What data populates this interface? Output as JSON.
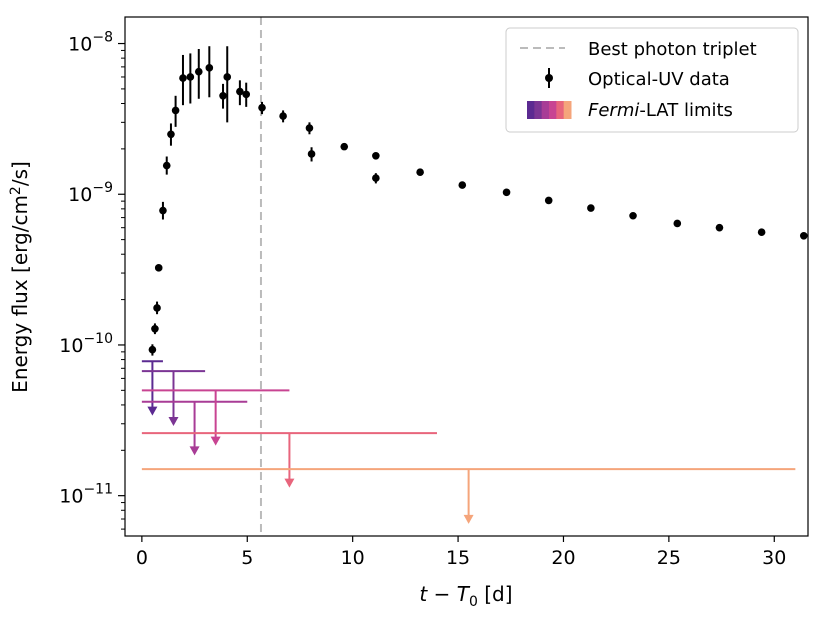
{
  "chart_data": {
    "type": "scatter",
    "title": "",
    "xlabel": {
      "italic_var": "t",
      "minus": " − ",
      "base": "T",
      "sub": "0",
      "unit": " [d]"
    },
    "ylabel": {
      "prefix": "Energy flux [erg/cm",
      "sup": "2",
      "suffix": "/s]"
    },
    "y_scale": "log",
    "xlim": [
      -0.8,
      31.6
    ],
    "ylim": [
      5.4e-12,
      1.5e-08
    ],
    "x_ticks": [
      0,
      5,
      10,
      15,
      20,
      25,
      30
    ],
    "x_tick_labels": [
      "0",
      "5",
      "10",
      "15",
      "20",
      "25",
      "30"
    ],
    "y_ticks": [
      {
        "value": 1e-11,
        "base": "10",
        "exp": "−11"
      },
      {
        "value": 1e-10,
        "base": "10",
        "exp": "−10"
      },
      {
        "value": 1e-09,
        "base": "10",
        "exp": "−9"
      },
      {
        "value": 1e-08,
        "base": "10",
        "exp": "−8"
      }
    ],
    "grid": false,
    "legend": {
      "position": "top-right",
      "entries": {
        "triplet": "Best photon triplet",
        "optical": "Optical-UV data",
        "fermi_italic": "Fermi",
        "fermi_rest": "-LAT limits"
      }
    },
    "vertical_line": {
      "x": 5.65,
      "color": "#bbbbbb",
      "style": "dashed",
      "legend": "Best photon triplet"
    },
    "optical_uv_data": {
      "name": "Optical-UV data",
      "color": "#000000",
      "points": [
        {
          "x": 0.5,
          "y": 9.3e-11,
          "yerr_low": 8.5e-11,
          "yerr_high": 1.01e-10
        },
        {
          "x": 0.62,
          "y": 1.28e-10,
          "yerr_low": 1.18e-10,
          "yerr_high": 1.39e-10
        },
        {
          "x": 0.72,
          "y": 1.76e-10,
          "yerr_low": 1.6e-10,
          "yerr_high": 1.94e-10
        },
        {
          "x": 0.8,
          "y": 3.25e-10,
          "yerr_low": 3.15e-10,
          "yerr_high": 3.35e-10
        },
        {
          "x": 1.0,
          "y": 7.8e-10,
          "yerr_low": 6.8e-10,
          "yerr_high": 8.9e-10
        },
        {
          "x": 1.18,
          "y": 1.55e-09,
          "yerr_low": 1.35e-09,
          "yerr_high": 1.78e-09
        },
        {
          "x": 1.38,
          "y": 2.5e-09,
          "yerr_low": 2.1e-09,
          "yerr_high": 2.95e-09
        },
        {
          "x": 1.6,
          "y": 3.6e-09,
          "yerr_low": 2.8e-09,
          "yerr_high": 4.5e-09
        },
        {
          "x": 1.95,
          "y": 5.9e-09,
          "yerr_low": 3.9e-09,
          "yerr_high": 8.4e-09
        },
        {
          "x": 2.3,
          "y": 6e-09,
          "yerr_low": 4e-09,
          "yerr_high": 8.6e-09
        },
        {
          "x": 2.7,
          "y": 6.5e-09,
          "yerr_low": 4.3e-09,
          "yerr_high": 9.2e-09
        },
        {
          "x": 3.2,
          "y": 6.9e-09,
          "yerr_low": 4.4e-09,
          "yerr_high": 9.6e-09
        },
        {
          "x": 3.85,
          "y": 4.5e-09,
          "yerr_low": 3.7e-09,
          "yerr_high": 5.4e-09
        },
        {
          "x": 4.05,
          "y": 6e-09,
          "yerr_low": 3e-09,
          "yerr_high": 9.6e-09
        },
        {
          "x": 4.65,
          "y": 4.8e-09,
          "yerr_low": 3.9e-09,
          "yerr_high": 5.7e-09
        },
        {
          "x": 4.95,
          "y": 4.6e-09,
          "yerr_low": 3.8e-09,
          "yerr_high": 5.5e-09
        },
        {
          "x": 5.7,
          "y": 3.75e-09,
          "yerr_low": 3.4e-09,
          "yerr_high": 4.1e-09
        },
        {
          "x": 6.7,
          "y": 3.3e-09,
          "yerr_low": 3e-09,
          "yerr_high": 3.6e-09
        },
        {
          "x": 7.95,
          "y": 2.75e-09,
          "yerr_low": 2.5e-09,
          "yerr_high": 3e-09
        },
        {
          "x": 8.05,
          "y": 1.85e-09,
          "yerr_low": 1.65e-09,
          "yerr_high": 2.05e-09
        },
        {
          "x": 9.6,
          "y": 2.07e-09,
          "yerr_low": 2e-09,
          "yerr_high": 2.14e-09
        },
        {
          "x": 11.1,
          "y": 1.8e-09,
          "yerr_low": 1.74e-09,
          "yerr_high": 1.86e-09
        },
        {
          "x": 11.1,
          "y": 1.28e-09,
          "yerr_low": 1.18e-09,
          "yerr_high": 1.38e-09
        },
        {
          "x": 13.2,
          "y": 1.4e-09,
          "yerr_low": 1.36e-09,
          "yerr_high": 1.44e-09
        },
        {
          "x": 15.2,
          "y": 1.15e-09,
          "yerr_low": 1.12e-09,
          "yerr_high": 1.18e-09
        },
        {
          "x": 17.3,
          "y": 1.03e-09,
          "yerr_low": 1e-09,
          "yerr_high": 1.06e-09
        },
        {
          "x": 19.3,
          "y": 9.1e-10,
          "yerr_low": 8.9e-10,
          "yerr_high": 9.3e-10
        },
        {
          "x": 21.3,
          "y": 8.1e-10,
          "yerr_low": 7.9e-10,
          "yerr_high": 8.3e-10
        },
        {
          "x": 23.3,
          "y": 7.2e-10,
          "yerr_low": 7e-10,
          "yerr_high": 7.4e-10
        },
        {
          "x": 25.4,
          "y": 6.4e-10,
          "yerr_low": 6.25e-10,
          "yerr_high": 6.55e-10
        },
        {
          "x": 27.4,
          "y": 6e-10,
          "yerr_low": 5.85e-10,
          "yerr_high": 6.15e-10
        },
        {
          "x": 29.4,
          "y": 5.6e-10,
          "yerr_low": 5.45e-10,
          "yerr_high": 5.75e-10
        },
        {
          "x": 31.4,
          "y": 5.3e-10,
          "yerr_low": 5.15e-10,
          "yerr_high": 5.45e-10
        }
      ]
    },
    "fermi_lat_limits": {
      "name": "Fermi-LAT limits",
      "entries": [
        {
          "x_start": 0.0,
          "x_end": 1.0,
          "y": 7.8e-11,
          "arrow_x": 0.5,
          "arrow_to": 3.4e-11,
          "color": "#5b2a91"
        },
        {
          "x_start": 0.0,
          "x_end": 3.0,
          "y": 6.7e-11,
          "arrow_x": 1.5,
          "arrow_to": 2.9e-11,
          "color": "#7b3594"
        },
        {
          "x_start": 0.0,
          "x_end": 5.0,
          "y": 4.2e-11,
          "arrow_x": 2.5,
          "arrow_to": 1.85e-11,
          "color": "#a83c96"
        },
        {
          "x_start": 0.0,
          "x_end": 7.0,
          "y": 5e-11,
          "arrow_x": 3.5,
          "arrow_to": 2.15e-11,
          "color": "#c84492"
        },
        {
          "x_start": 0.0,
          "x_end": 14.0,
          "y": 2.6e-11,
          "arrow_x": 7.0,
          "arrow_to": 1.13e-11,
          "color": "#e8657c"
        },
        {
          "x_start": 0.0,
          "x_end": 31.0,
          "y": 1.5e-11,
          "arrow_x": 15.5,
          "arrow_to": 6.5e-12,
          "color": "#f5a57b"
        }
      ],
      "legend_colors": [
        "#5b2a91",
        "#7b3594",
        "#a83c96",
        "#c84492",
        "#e8657c",
        "#f5a57b"
      ]
    }
  }
}
